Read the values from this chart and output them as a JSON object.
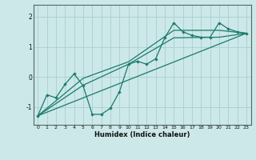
{
  "title": "",
  "xlabel": "Humidex (Indice chaleur)",
  "bg_color": "#cce8e8",
  "line_color": "#1a7a6e",
  "grid_color": "#aacfcf",
  "spine_color": "#556666",
  "xlim": [
    -0.5,
    23.5
  ],
  "ylim": [
    -1.6,
    2.4
  ],
  "xticks": [
    0,
    1,
    2,
    3,
    4,
    5,
    6,
    7,
    8,
    9,
    10,
    11,
    12,
    13,
    14,
    15,
    16,
    17,
    18,
    19,
    20,
    21,
    22,
    23
  ],
  "yticks": [
    -1,
    0,
    1,
    2
  ],
  "series1_x": [
    0,
    1,
    2,
    3,
    4,
    5,
    6,
    7,
    8,
    9,
    10,
    11,
    12,
    13,
    14,
    15,
    16,
    17,
    18,
    19,
    20,
    21,
    22,
    23
  ],
  "series1_y": [
    -1.3,
    -0.6,
    -0.7,
    -0.25,
    0.1,
    -0.3,
    -1.25,
    -1.25,
    -1.05,
    -0.5,
    0.42,
    0.52,
    0.42,
    0.6,
    1.3,
    1.8,
    1.5,
    1.38,
    1.32,
    1.32,
    1.8,
    1.6,
    1.5,
    1.45
  ],
  "series2_x": [
    0,
    23
  ],
  "series2_y": [
    -1.3,
    1.45
  ],
  "series3_x": [
    0,
    5,
    10,
    15,
    20,
    23
  ],
  "series3_y": [
    -1.3,
    -0.05,
    0.5,
    1.55,
    1.55,
    1.45
  ],
  "series4_x": [
    0,
    5,
    10,
    15,
    20,
    23
  ],
  "series4_y": [
    -1.3,
    -0.28,
    0.42,
    1.3,
    1.32,
    1.45
  ]
}
